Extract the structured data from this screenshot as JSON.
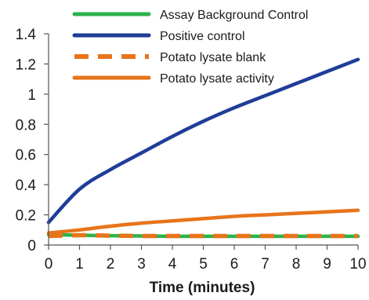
{
  "chart_data": {
    "type": "line",
    "title": "",
    "xlabel": "Time (minutes)",
    "ylabel": "",
    "xlim": [
      0,
      10
    ],
    "ylim": [
      0,
      1.4
    ],
    "x_ticks": [
      0,
      1,
      2,
      3,
      4,
      5,
      6,
      7,
      8,
      9,
      10
    ],
    "y_ticks": [
      0,
      0.2,
      0.4,
      0.6,
      0.8,
      1,
      1.2,
      1.4
    ],
    "x_tick_labels": [
      "0",
      "1",
      "2",
      "3",
      "4",
      "5",
      "6",
      "7",
      "8",
      "9",
      "10"
    ],
    "y_tick_labels": [
      "0",
      "0.2",
      "0.4",
      "0.6",
      "0.8",
      "1",
      "1.2",
      "1.4"
    ],
    "grid": false,
    "legend_position": "top",
    "x": [
      0,
      1,
      2,
      3,
      4,
      5,
      6,
      7,
      8,
      9,
      10
    ],
    "series": [
      {
        "name": "Assay Background Control",
        "color": "#2db34a",
        "dash": "solid",
        "values": [
          0.07,
          0.065,
          0.062,
          0.06,
          0.058,
          0.058,
          0.058,
          0.058,
          0.058,
          0.058,
          0.058
        ]
      },
      {
        "name": "Positive control",
        "color": "#1f3d99",
        "dash": "solid",
        "values": [
          0.15,
          0.37,
          0.5,
          0.61,
          0.72,
          0.82,
          0.91,
          0.99,
          1.07,
          1.15,
          1.23
        ]
      },
      {
        "name": "Potato lysate blank",
        "color": "#e8741a",
        "dash": "dashed",
        "values": [
          0.06,
          0.065,
          0.062,
          0.06,
          0.06,
          0.06,
          0.06,
          0.06,
          0.06,
          0.06,
          0.06
        ]
      },
      {
        "name": "Potato lysate activity",
        "color": "#e8741a",
        "dash": "solid",
        "values": [
          0.08,
          0.1,
          0.125,
          0.145,
          0.16,
          0.175,
          0.19,
          0.2,
          0.21,
          0.22,
          0.23
        ]
      }
    ]
  }
}
